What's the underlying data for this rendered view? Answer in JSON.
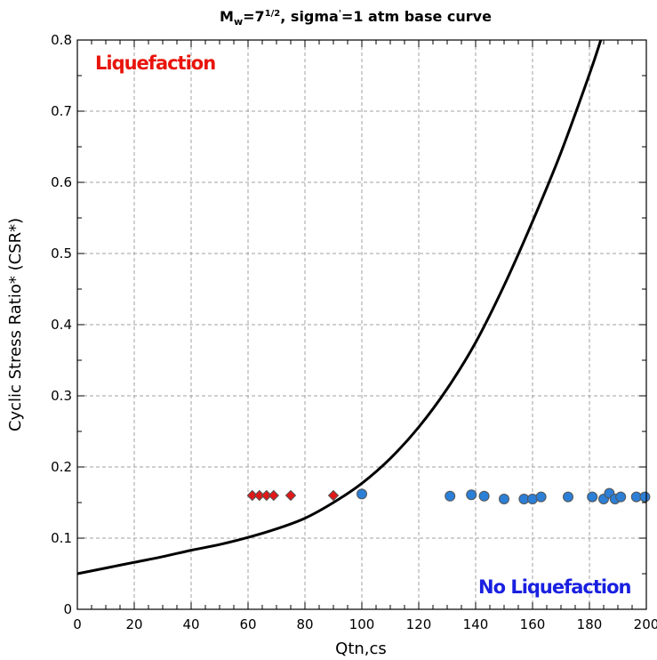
{
  "chart_data": {
    "type": "scatter",
    "title": {
      "prefix": "M",
      "subscript": "w",
      "mid": "=7",
      "superscript": "1/2",
      "rest": ", sigma",
      "prime": "'",
      "suffix": "=1 atm base curve"
    },
    "xlabel": "Qtn,cs",
    "ylabel": "Cyclic Stress Ratio* (CSR*)",
    "xlim": [
      0,
      200
    ],
    "ylim": [
      0,
      0.8
    ],
    "x_ticks": [
      0,
      20,
      40,
      60,
      80,
      100,
      120,
      140,
      160,
      180,
      200
    ],
    "y_ticks": [
      0,
      0.1,
      0.2,
      0.3,
      0.4,
      0.5,
      0.6,
      0.7,
      0.8
    ],
    "y_tick_labels": [
      "0",
      "0.1",
      "0.2",
      "0.3",
      "0.4",
      "0.5",
      "0.6",
      "0.7",
      "0.8"
    ],
    "grid": true,
    "annotations": {
      "liquefaction": {
        "text": "Liquefaction",
        "color": "#e8140c",
        "position": "top-left"
      },
      "no_liquefaction": {
        "text": "No Liquefaction",
        "color": "#1a20e0",
        "position": "bottom-right"
      }
    },
    "curve": {
      "color": "#000000",
      "points": [
        [
          0,
          0.05
        ],
        [
          10,
          0.058
        ],
        [
          20,
          0.066
        ],
        [
          30,
          0.074
        ],
        [
          40,
          0.083
        ],
        [
          50,
          0.091
        ],
        [
          60,
          0.101
        ],
        [
          70,
          0.113
        ],
        [
          80,
          0.128
        ],
        [
          90,
          0.15
        ],
        [
          100,
          0.177
        ],
        [
          110,
          0.212
        ],
        [
          120,
          0.256
        ],
        [
          130,
          0.31
        ],
        [
          140,
          0.375
        ],
        [
          150,
          0.455
        ],
        [
          160,
          0.545
        ],
        [
          170,
          0.642
        ],
        [
          180,
          0.752
        ],
        [
          184,
          0.8
        ]
      ]
    },
    "series": [
      {
        "marker": "diamond",
        "color": "#e01818",
        "edge": "#555555",
        "points": [
          [
            61.5,
            0.16
          ],
          [
            64,
            0.16
          ],
          [
            66.5,
            0.16
          ],
          [
            69,
            0.16
          ],
          [
            75,
            0.16
          ],
          [
            90,
            0.16
          ]
        ]
      },
      {
        "marker": "circle",
        "color": "#2c7fd6",
        "edge": "#555555",
        "points": [
          [
            100,
            0.162
          ],
          [
            131,
            0.159
          ],
          [
            138.5,
            0.161
          ],
          [
            143,
            0.159
          ],
          [
            150,
            0.155
          ],
          [
            157,
            0.155
          ],
          [
            160,
            0.155
          ],
          [
            163,
            0.158
          ],
          [
            172.5,
            0.158
          ],
          [
            181,
            0.158
          ],
          [
            185,
            0.155
          ],
          [
            187,
            0.163
          ],
          [
            189,
            0.155
          ],
          [
            191,
            0.158
          ],
          [
            196.5,
            0.158
          ],
          [
            199.5,
            0.158
          ]
        ]
      }
    ]
  }
}
